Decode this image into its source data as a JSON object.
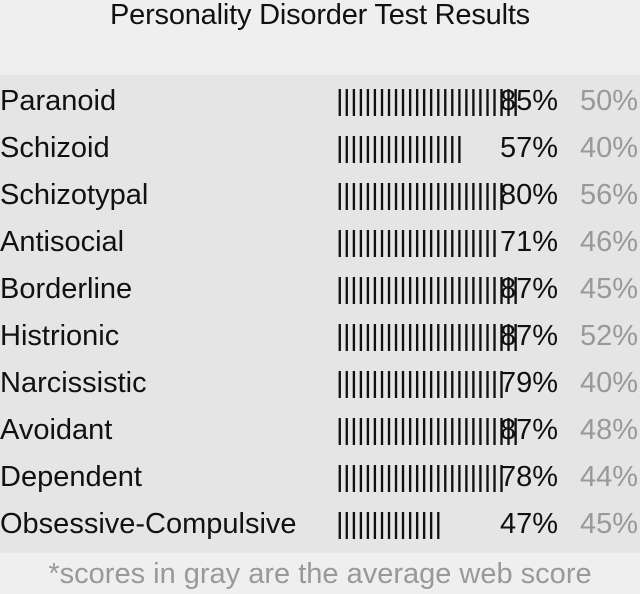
{
  "title": "Personality Disorder Test Results",
  "colors": {
    "header_bg": "#efefef",
    "table_bg": "#e5e5e5",
    "text": "#111111",
    "average_text": "#999999"
  },
  "results": [
    {
      "label": "Paranoid",
      "bar": "||||||||||||||||||||||||||",
      "score": "85%",
      "average": "50%"
    },
    {
      "label": "Schizoid",
      "bar": "||||||||||||||||||",
      "score": "57%",
      "average": "40%"
    },
    {
      "label": "Schizotypal",
      "bar": "||||||||||||||||||||||||",
      "score": "80%",
      "average": "56%"
    },
    {
      "label": "Antisocial",
      "bar": "|||||||||||||||||||||||",
      "score": "71%",
      "average": "46%"
    },
    {
      "label": "Borderline",
      "bar": "||||||||||||||||||||||||||",
      "score": "87%",
      "average": "45%"
    },
    {
      "label": "Histrionic",
      "bar": "||||||||||||||||||||||||||",
      "score": "87%",
      "average": "52%"
    },
    {
      "label": "Narcissistic",
      "bar": "||||||||||||||||||||||||",
      "score": "79%",
      "average": "40%"
    },
    {
      "label": "Avoidant",
      "bar": "||||||||||||||||||||||||||",
      "score": "87%",
      "average": "48%"
    },
    {
      "label": "Dependent",
      "bar": "||||||||||||||||||||||||",
      "score": "78%",
      "average": "44%"
    },
    {
      "label": "Obsessive-Compulsive",
      "bar": "|||||||||||||||",
      "score": "47%",
      "average": "45%"
    }
  ],
  "footer_note": "*scores in gray are the average web score"
}
